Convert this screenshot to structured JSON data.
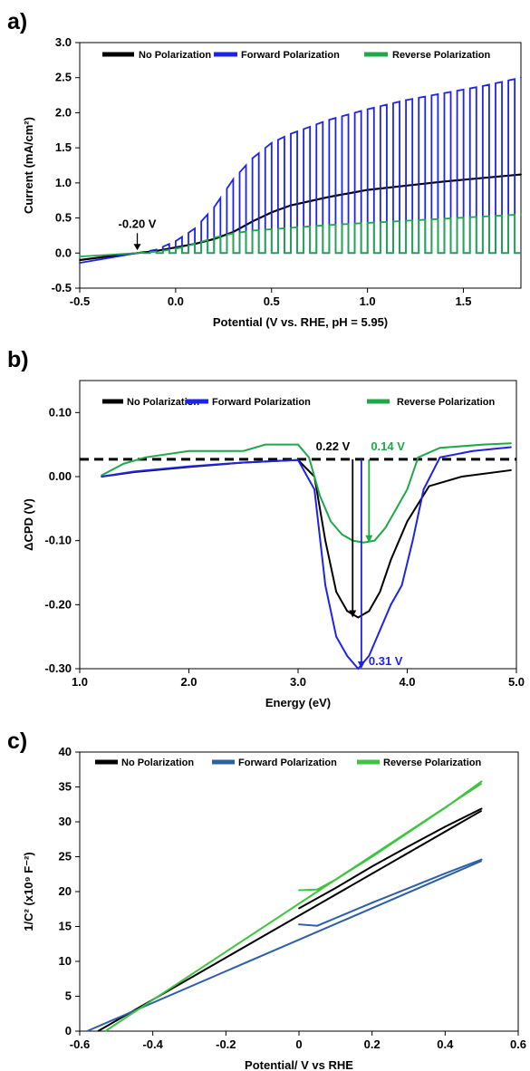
{
  "chart_data": [
    {
      "panel": "a)",
      "type": "line",
      "xlabel": "Potential (V vs. RHE, pH = 5.95)",
      "ylabel": "Current (mA/cm²)",
      "xlim": [
        -0.5,
        1.8
      ],
      "ylim": [
        -0.5,
        3.0
      ],
      "xticks": [
        "-0.5",
        "0.0",
        "0.5",
        "1.0",
        "1.5"
      ],
      "xtick_values": [
        -0.5,
        0.0,
        0.5,
        1.0,
        1.5
      ],
      "yticks": [
        "-0.5",
        "0.0",
        "0.5",
        "1.0",
        "1.5",
        "2.0",
        "2.5",
        "3.0"
      ],
      "ytick_values": [
        -0.5,
        0.0,
        0.5,
        1.0,
        1.5,
        2.0,
        2.5,
        3.0
      ],
      "grid": false,
      "legend_position": "top",
      "colors": {
        "no_polarization": "#000000",
        "forward": "#1f23e6",
        "reverse": "#1fa84a"
      },
      "series": [
        {
          "name": "No Polarization",
          "x": [
            -0.5,
            -0.3,
            -0.2,
            -0.1,
            0.0,
            0.1,
            0.2,
            0.3,
            0.4,
            0.5,
            0.6,
            0.8,
            1.0,
            1.2,
            1.4,
            1.6,
            1.8
          ],
          "y": [
            -0.1,
            -0.03,
            0.0,
            0.03,
            0.08,
            0.13,
            0.2,
            0.3,
            0.45,
            0.58,
            0.68,
            0.8,
            0.9,
            0.96,
            1.02,
            1.07,
            1.12
          ]
        },
        {
          "name": "Forward Polarization",
          "x": [
            -0.5,
            -0.3,
            -0.2,
            -0.1,
            0.0,
            0.1,
            0.2,
            0.3,
            0.4,
            0.5,
            0.6,
            0.8,
            1.0,
            1.2,
            1.4,
            1.6,
            1.8
          ],
          "y": [
            -0.14,
            -0.05,
            0.0,
            0.05,
            0.17,
            0.35,
            0.65,
            1.05,
            1.35,
            1.57,
            1.7,
            1.9,
            2.05,
            2.18,
            2.28,
            2.38,
            2.5
          ]
        },
        {
          "name": "Reverse Polarization",
          "x": [
            -0.5,
            -0.3,
            -0.2,
            -0.1,
            0.0,
            0.1,
            0.2,
            0.3,
            0.4,
            0.6,
            0.8,
            1.0,
            1.2,
            1.4,
            1.6,
            1.8
          ],
          "y": [
            -0.05,
            -0.02,
            0.0,
            0.02,
            0.06,
            0.13,
            0.22,
            0.28,
            0.32,
            0.36,
            0.4,
            0.43,
            0.46,
            0.49,
            0.52,
            0.55
          ]
        }
      ],
      "annotations": [
        {
          "text": "-0.20 V",
          "x": -0.2,
          "y": 0.0
        }
      ]
    },
    {
      "panel": "b)",
      "type": "line",
      "xlabel": "Energy (eV)",
      "ylabel": "ΔCPD (V)",
      "xlim": [
        1.0,
        5.0
      ],
      "ylim": [
        -0.3,
        0.15
      ],
      "xticks": [
        "1.0",
        "2.0",
        "3.0",
        "4.0",
        "5.0"
      ],
      "xtick_values": [
        1.0,
        2.0,
        3.0,
        4.0,
        5.0
      ],
      "yticks": [
        "-0.30",
        "-0.20",
        "-0.10",
        "0.00",
        "0.10"
      ],
      "ytick_values": [
        -0.3,
        -0.2,
        -0.1,
        0.0,
        0.1
      ],
      "grid": false,
      "legend_position": "top",
      "reference_level": 0.027,
      "colors": {
        "no_polarization": "#000000",
        "forward": "#1f23e6",
        "reverse": "#1fa84a"
      },
      "series": [
        {
          "name": "No Polarization",
          "x": [
            1.2,
            1.5,
            2.0,
            2.5,
            3.0,
            3.15,
            3.25,
            3.35,
            3.45,
            3.55,
            3.65,
            3.75,
            3.85,
            4.0,
            4.2,
            4.5,
            4.95
          ],
          "y": [
            0.0,
            0.007,
            0.015,
            0.022,
            0.026,
            0.0,
            -0.1,
            -0.18,
            -0.21,
            -0.22,
            -0.21,
            -0.18,
            -0.13,
            -0.07,
            -0.015,
            0.0,
            0.01
          ]
        },
        {
          "name": "Forward Polarization",
          "x": [
            1.2,
            1.5,
            2.0,
            2.5,
            3.0,
            3.15,
            3.25,
            3.35,
            3.45,
            3.55,
            3.65,
            3.75,
            3.85,
            3.95,
            4.05,
            4.15,
            4.3,
            4.6,
            4.95
          ],
          "y": [
            0.0,
            0.008,
            0.016,
            0.022,
            0.026,
            -0.02,
            -0.17,
            -0.25,
            -0.28,
            -0.3,
            -0.28,
            -0.24,
            -0.2,
            -0.17,
            -0.1,
            -0.02,
            0.03,
            0.04,
            0.046
          ]
        },
        {
          "name": "Reverse Polarization",
          "x": [
            1.2,
            1.4,
            1.6,
            2.0,
            2.5,
            2.7,
            3.0,
            3.1,
            3.2,
            3.3,
            3.4,
            3.5,
            3.6,
            3.7,
            3.8,
            3.9,
            4.0,
            4.1,
            4.3,
            4.7,
            4.95
          ],
          "y": [
            0.002,
            0.02,
            0.03,
            0.04,
            0.04,
            0.05,
            0.05,
            0.03,
            -0.03,
            -0.07,
            -0.09,
            -0.1,
            -0.103,
            -0.1,
            -0.08,
            -0.05,
            -0.02,
            0.03,
            0.045,
            0.05,
            0.052
          ]
        }
      ],
      "annotations": [
        {
          "text": "0.22 V",
          "series": "No Polarization",
          "x": 3.5
        },
        {
          "text": "0.14 V",
          "series": "Reverse Polarization",
          "x": 3.65
        },
        {
          "text": "0.31 V",
          "series": "Forward Polarization",
          "x": 3.58
        }
      ]
    },
    {
      "panel": "c)",
      "type": "line",
      "xlabel": "Potential/ V vs RHE",
      "ylabel": "1/C² (x10⁹ F⁻²)",
      "xlim": [
        -0.6,
        0.6
      ],
      "ylim": [
        0,
        40
      ],
      "xticks": [
        "-0.6",
        "-0.4",
        "-0.2",
        "0",
        "0.2",
        "0.4",
        "0.6"
      ],
      "xtick_values": [
        -0.6,
        -0.4,
        -0.2,
        0,
        0.2,
        0.4,
        0.6
      ],
      "yticks": [
        "0",
        "5",
        "10",
        "15",
        "20",
        "25",
        "30",
        "35",
        "40"
      ],
      "ytick_values": [
        0,
        5,
        10,
        15,
        20,
        25,
        30,
        35,
        40
      ],
      "grid": false,
      "legend_position": "top",
      "colors": {
        "no_polarization": "#000000",
        "forward": "#2d5fa6",
        "reverse": "#3ec43e"
      },
      "series": [
        {
          "name": "No Polarization",
          "fit": {
            "x": [
              -0.55,
              0.5
            ],
            "y": [
              0.0,
              31.6
            ]
          },
          "data": {
            "x": [
              0.0,
              0.1,
              0.2,
              0.3,
              0.4,
              0.5
            ],
            "y": [
              17.6,
              20.5,
              23.6,
              26.5,
              29.3,
              31.9
            ]
          }
        },
        {
          "name": "Forward Polarization",
          "fit": {
            "x": [
              -0.58,
              0.5
            ],
            "y": [
              0.0,
              24.4
            ]
          },
          "data": {
            "x": [
              0.0,
              0.05,
              0.1,
              0.2,
              0.3,
              0.4,
              0.5
            ],
            "y": [
              15.3,
              15.1,
              16.2,
              18.4,
              20.5,
              22.6,
              24.6
            ]
          }
        },
        {
          "name": "Reverse Polarization",
          "fit": {
            "x": [
              -0.53,
              0.5
            ],
            "y": [
              0.0,
              35.5
            ]
          },
          "data": {
            "x": [
              0.0,
              0.05,
              0.1,
              0.2,
              0.3,
              0.4,
              0.5
            ],
            "y": [
              20.2,
              20.3,
              21.7,
              25.0,
              28.5,
              32.0,
              35.8
            ]
          }
        }
      ]
    }
  ]
}
